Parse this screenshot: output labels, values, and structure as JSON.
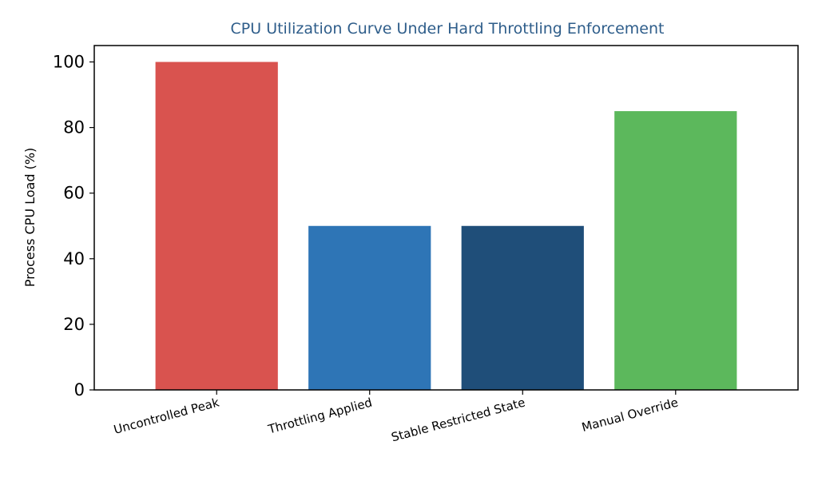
{
  "chart_data": {
    "type": "bar",
    "title": "CPU Utilization Curve Under Hard Throttling Enforcement",
    "xlabel": "",
    "ylabel": "Process CPU Load (%)",
    "categories": [
      "Uncontrolled Peak",
      "Throttling Applied",
      "Stable Restricted State",
      "Manual Override"
    ],
    "values": [
      100,
      50,
      50,
      85
    ],
    "colors": [
      "#d9534f",
      "#2e75b6",
      "#1f4e79",
      "#5cb85c"
    ],
    "title_color": "#2e5d8a",
    "ylim": [
      0,
      105
    ],
    "yticks": [
      0,
      20,
      40,
      60,
      80,
      100
    ],
    "grid": false,
    "legend": "none"
  }
}
